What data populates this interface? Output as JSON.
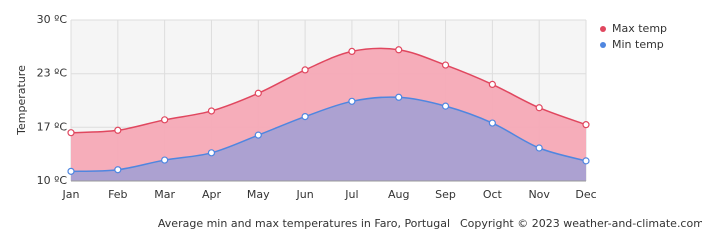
{
  "chart_data": {
    "type": "area",
    "ylabel": "Temperature",
    "caption": "Average min and max temperatures in Faro, Portugal",
    "credit": "Copyright © 2023  weather-and-climate.com",
    "categories": [
      "Jan",
      "Feb",
      "Mar",
      "Apr",
      "May",
      "Jun",
      "Jul",
      "Aug",
      "Sep",
      "Oct",
      "Nov",
      "Dec"
    ],
    "series": [
      {
        "name": "Max temp",
        "color": "#e0475f",
        "fill": "#f5a9b6",
        "values": [
          16.0,
          16.3,
          17.6,
          18.7,
          20.9,
          23.8,
          26.1,
          26.3,
          24.4,
          22.0,
          19.1,
          17.0
        ]
      },
      {
        "name": "Min temp",
        "color": "#4f86e0",
        "fill": "#a8a0d2",
        "values": [
          11.2,
          11.4,
          12.6,
          13.5,
          15.7,
          18.0,
          19.9,
          20.4,
          19.3,
          17.2,
          14.1,
          12.5
        ]
      }
    ],
    "ylim": [
      10,
      30
    ],
    "yticks": [
      {
        "value": 10,
        "label": "10 ºC"
      },
      {
        "value": 16.67,
        "label": "17 ºC"
      },
      {
        "value": 23.33,
        "label": "23 ºC"
      },
      {
        "value": 30,
        "label": "30 ºC"
      }
    ],
    "grid": true,
    "legend": "top-right"
  }
}
